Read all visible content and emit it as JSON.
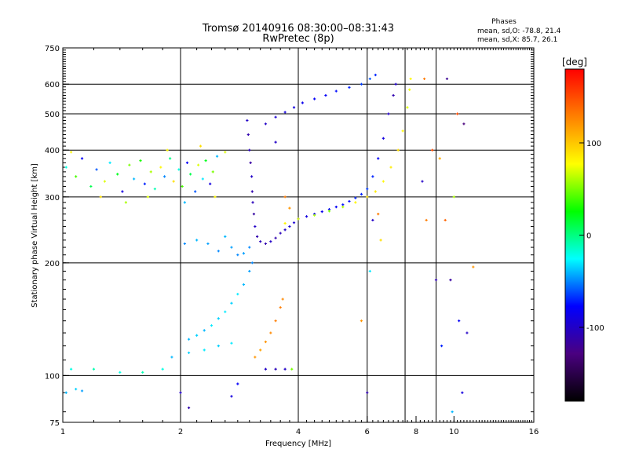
{
  "chart_data": {
    "type": "scatter",
    "title": "Tromsø 20140916 08:30:00–08:31:43",
    "subtitle": "RwPretec (8p)",
    "phase_info": {
      "heading": "Phases",
      "line_o": "mean, sd,O: -78.8, 21.4",
      "line_x": "mean, sd,X:  85.7, 26.1"
    },
    "xlabel": "Frequency [MHz]",
    "ylabel": "Stationary phase Virtual Height [km]",
    "x_scale": "log",
    "y_scale": "log",
    "xlim": [
      1,
      16
    ],
    "ylim": [
      75,
      750
    ],
    "x_ticks": [
      1,
      2,
      4,
      6,
      8,
      10,
      16
    ],
    "x_tick_labels": [
      "1",
      "2",
      "4",
      "6",
      "8",
      "10",
      "16"
    ],
    "x_grid": [
      2,
      4,
      6,
      7.5,
      9
    ],
    "y_ticks": [
      75,
      100,
      200,
      300,
      400,
      500,
      600,
      750
    ],
    "y_tick_labels": [
      "75",
      "100",
      "200",
      "300",
      "400",
      "500",
      "600",
      "750"
    ],
    "y_grid": [
      100,
      200,
      300,
      400,
      500,
      600
    ],
    "grid": true,
    "colorbar": {
      "title": "[deg]",
      "range": [
        -180,
        180
      ],
      "ticks": [
        100,
        0,
        -100
      ],
      "tick_labels": [
        "100",
        "0",
        "-100"
      ],
      "colors": [
        "#000000",
        "#4a0080",
        "#0000ff",
        "#00ffff",
        "#00ff00",
        "#ffff00",
        "#ff8000",
        "#ff0000"
      ]
    },
    "series": [
      {
        "points": [
          [
            1.02,
            360,
            -20
          ],
          [
            1.08,
            340,
            40
          ],
          [
            1.12,
            380,
            -80
          ],
          [
            1.18,
            320,
            10
          ],
          [
            1.22,
            355,
            -60
          ],
          [
            1.28,
            330,
            70
          ],
          [
            1.32,
            370,
            -30
          ],
          [
            1.38,
            345,
            20
          ],
          [
            1.42,
            310,
            -90
          ],
          [
            1.48,
            365,
            50
          ],
          [
            1.52,
            335,
            -40
          ],
          [
            1.58,
            375,
            30
          ],
          [
            1.62,
            325,
            -70
          ],
          [
            1.68,
            350,
            60
          ],
          [
            1.72,
            315,
            -10
          ],
          [
            1.78,
            360,
            80
          ],
          [
            1.82,
            340,
            -50
          ],
          [
            1.88,
            380,
            0
          ],
          [
            1.92,
            330,
            90
          ],
          [
            1.98,
            355,
            -20
          ],
          [
            2.02,
            320,
            40
          ],
          [
            2.08,
            370,
            -80
          ],
          [
            2.12,
            345,
            10
          ],
          [
            2.18,
            310,
            -60
          ],
          [
            2.22,
            365,
            70
          ],
          [
            2.28,
            335,
            -30
          ],
          [
            2.32,
            375,
            20
          ],
          [
            2.38,
            325,
            -90
          ],
          [
            2.42,
            350,
            50
          ],
          [
            2.48,
            385,
            -40
          ],
          [
            1.05,
            395,
            80
          ],
          [
            1.25,
            300,
            90
          ],
          [
            1.45,
            290,
            60
          ],
          [
            1.65,
            300,
            70
          ],
          [
            1.85,
            400,
            80
          ],
          [
            2.05,
            290,
            -40
          ],
          [
            2.25,
            410,
            90
          ],
          [
            2.45,
            300,
            80
          ],
          [
            2.6,
            395,
            70
          ]
        ]
      },
      {
        "points": [
          [
            2.96,
            480,
            -100
          ],
          [
            2.98,
            440,
            -110
          ],
          [
            3.0,
            400,
            -105
          ],
          [
            3.02,
            370,
            -115
          ],
          [
            3.04,
            340,
            -100
          ],
          [
            3.05,
            310,
            -110
          ],
          [
            3.06,
            290,
            -105
          ],
          [
            3.08,
            270,
            -115
          ],
          [
            3.1,
            250,
            -100
          ],
          [
            3.14,
            235,
            -110
          ],
          [
            3.2,
            228,
            -105
          ],
          [
            3.3,
            225,
            -110
          ],
          [
            3.4,
            228,
            -100
          ],
          [
            3.5,
            233,
            -110
          ],
          [
            3.6,
            240,
            -105
          ],
          [
            3.7,
            245,
            -100
          ],
          [
            3.8,
            250,
            -95
          ],
          [
            3.9,
            256,
            -95
          ],
          [
            4.0,
            262,
            -90
          ],
          [
            4.2,
            266,
            -90
          ],
          [
            4.4,
            270,
            -85
          ],
          [
            4.6,
            274,
            -85
          ],
          [
            4.8,
            278,
            -80
          ],
          [
            5.0,
            282,
            -80
          ],
          [
            5.2,
            286,
            -75
          ],
          [
            5.4,
            292,
            -75
          ],
          [
            5.6,
            298,
            -70
          ],
          [
            5.8,
            305,
            -70
          ],
          [
            6.0,
            315,
            -65
          ],
          [
            6.2,
            340,
            -70
          ],
          [
            6.4,
            380,
            -80
          ],
          [
            6.6,
            430,
            -90
          ],
          [
            6.8,
            500,
            -100
          ],
          [
            7.0,
            560,
            -110
          ],
          [
            7.1,
            600,
            -100
          ]
        ]
      },
      {
        "points": [
          [
            3.3,
            470,
            -100
          ],
          [
            3.5,
            490,
            -95
          ],
          [
            3.7,
            505,
            -90
          ],
          [
            3.9,
            520,
            -90
          ],
          [
            4.1,
            535,
            -85
          ],
          [
            4.4,
            548,
            -80
          ],
          [
            4.7,
            560,
            -80
          ],
          [
            5.0,
            575,
            -75
          ],
          [
            5.4,
            588,
            -70
          ],
          [
            5.8,
            600,
            -65
          ],
          [
            6.1,
            620,
            -60
          ],
          [
            6.3,
            635,
            -70
          ]
        ]
      },
      {
        "points": [
          [
            3.7,
            255,
            80
          ],
          [
            4.0,
            262,
            70
          ],
          [
            4.4,
            268,
            60
          ],
          [
            4.8,
            275,
            50
          ],
          [
            5.2,
            282,
            60
          ],
          [
            5.6,
            290,
            80
          ],
          [
            6.0,
            300,
            90
          ],
          [
            6.3,
            310,
            85
          ],
          [
            6.6,
            330,
            80
          ],
          [
            6.9,
            360,
            85
          ],
          [
            7.2,
            400,
            90
          ],
          [
            7.4,
            450,
            80
          ],
          [
            7.6,
            520,
            70
          ],
          [
            7.7,
            580,
            75
          ],
          [
            7.75,
            620,
            80
          ]
        ]
      },
      {
        "points": [
          [
            2.05,
            225,
            -50
          ],
          [
            2.2,
            230,
            -40
          ],
          [
            2.35,
            225,
            -45
          ],
          [
            2.5,
            215,
            -50
          ],
          [
            2.6,
            235,
            -40
          ],
          [
            2.7,
            220,
            -45
          ],
          [
            2.8,
            210,
            -50
          ],
          [
            2.9,
            212,
            -45
          ],
          [
            3.0,
            220,
            -50
          ]
        ]
      },
      {
        "points": [
          [
            2.1,
            125,
            -40
          ],
          [
            2.2,
            128,
            -35
          ],
          [
            2.3,
            132,
            -40
          ],
          [
            2.4,
            136,
            -30
          ],
          [
            2.5,
            142,
            -35
          ],
          [
            2.6,
            148,
            -30
          ],
          [
            2.7,
            156,
            -35
          ],
          [
            2.8,
            165,
            -30
          ],
          [
            2.9,
            175,
            -40
          ],
          [
            3.0,
            190,
            -45
          ],
          [
            3.05,
            200,
            -50
          ]
        ]
      },
      {
        "points": [
          [
            1.9,
            112,
            -40
          ],
          [
            2.1,
            115,
            -35
          ],
          [
            2.3,
            117,
            -30
          ],
          [
            2.5,
            120,
            -35
          ],
          [
            2.7,
            122,
            -30
          ]
        ]
      },
      {
        "points": [
          [
            1.05,
            104,
            -20
          ],
          [
            1.2,
            104,
            -10
          ],
          [
            1.4,
            102,
            -20
          ],
          [
            1.6,
            102,
            -10
          ],
          [
            1.8,
            104,
            -20
          ]
        ]
      },
      {
        "points": [
          [
            3.1,
            112,
            120
          ],
          [
            3.2,
            117,
            115
          ],
          [
            3.3,
            123,
            120
          ],
          [
            3.4,
            130,
            125
          ],
          [
            3.5,
            140,
            130
          ],
          [
            3.6,
            152,
            130
          ],
          [
            3.65,
            160,
            125
          ]
        ]
      },
      {
        "points": [
          [
            3.3,
            104,
            -100
          ],
          [
            3.5,
            104,
            -105
          ],
          [
            3.7,
            104,
            -100
          ],
          [
            3.85,
            104,
            50
          ]
        ]
      },
      {
        "points": [
          [
            1.02,
            90,
            -40
          ],
          [
            1.08,
            92,
            -35
          ],
          [
            1.12,
            91,
            -45
          ]
        ]
      },
      {
        "points": [
          [
            8.4,
            620,
            130
          ],
          [
            9.2,
            380,
            110
          ],
          [
            9.6,
            620,
            -120
          ],
          [
            8.3,
            330,
            -100
          ],
          [
            9.0,
            180,
            -110
          ],
          [
            9.8,
            180,
            -115
          ],
          [
            10.2,
            500,
            150
          ],
          [
            10.6,
            470,
            -130
          ],
          [
            8.5,
            260,
            130
          ],
          [
            9.3,
            120,
            -70
          ],
          [
            10.3,
            140,
            -80
          ],
          [
            10.8,
            130,
            -100
          ],
          [
            11.2,
            195,
            120
          ],
          [
            8.8,
            400,
            150
          ],
          [
            9.5,
            260,
            140
          ],
          [
            10.0,
            300,
            60
          ],
          [
            10.5,
            90,
            -90
          ],
          [
            6.0,
            90,
            -110
          ],
          [
            6.5,
            230,
            90
          ],
          [
            6.4,
            270,
            130
          ],
          [
            6.2,
            260,
            -100
          ],
          [
            2.0,
            90,
            -100
          ],
          [
            2.1,
            82,
            -110
          ],
          [
            2.7,
            88,
            -90
          ],
          [
            2.8,
            95,
            -80
          ],
          [
            3.5,
            420,
            -100
          ],
          [
            3.7,
            300,
            130
          ],
          [
            3.8,
            280,
            120
          ],
          [
            5.8,
            140,
            120
          ],
          [
            6.1,
            190,
            -30
          ],
          [
            9.9,
            80,
            -40
          ]
        ]
      }
    ]
  }
}
